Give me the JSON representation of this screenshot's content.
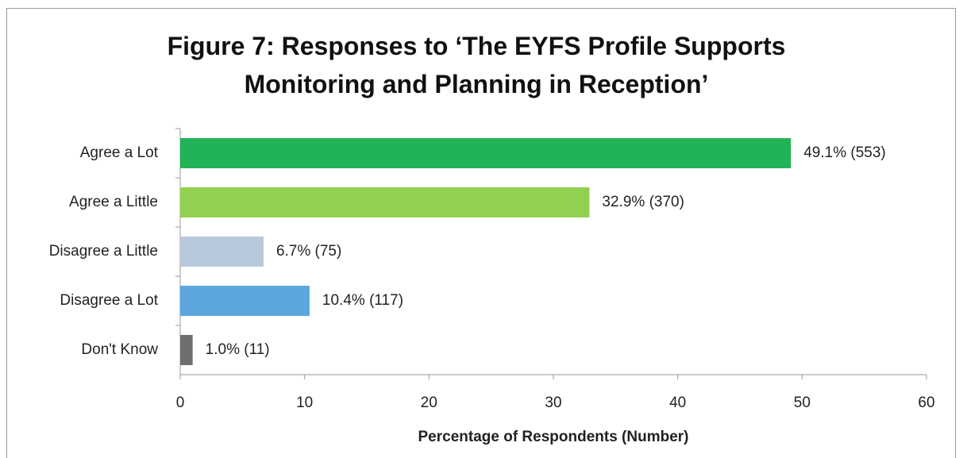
{
  "chart_data": {
    "type": "bar",
    "orientation": "horizontal",
    "title": "Figure 7: Responses to ‘The EYFS Profile Supports Monitoring and Planning in Reception’",
    "x_label": "Percentage of Respondents (Number)",
    "categories": [
      "Agree a Lot",
      "Agree a Little",
      "Disagree a Little",
      "Disagree a Lot",
      "Don't Know"
    ],
    "values": [
      49.1,
      32.9,
      6.7,
      10.4,
      1.0
    ],
    "value_labels": [
      "49.1% (553)",
      "32.9% (370)",
      "6.7% (75)",
      "10.4% (117)",
      "1.0% (11)"
    ],
    "colors": [
      "#23b357",
      "#92d050",
      "#b9c9dc",
      "#5ba6dd",
      "#6f6f6f"
    ],
    "xlim": [
      0,
      60
    ],
    "xticks": [
      0,
      10,
      20,
      30,
      40,
      50,
      60
    ],
    "grid": false
  }
}
